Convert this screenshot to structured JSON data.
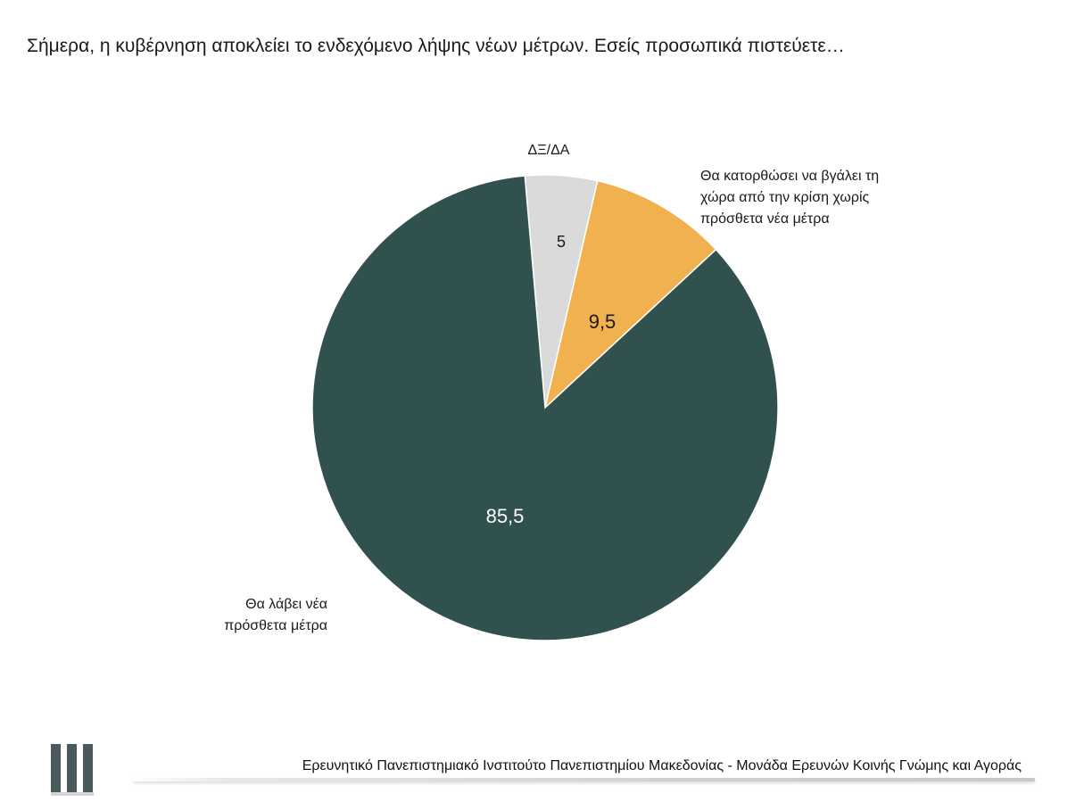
{
  "question": "Σήμερα, η κυβέρνηση αποκλείει το ενδεχόμενο λήψης νέων μέτρων. Εσείς προσωπικά πιστεύετε…",
  "chart_data": {
    "type": "pie",
    "start_angle_deg": -5,
    "direction": "clockwise",
    "slices": [
      {
        "value": 5,
        "value_label": "5",
        "category": [
          "ΔΞ/ΔΑ"
        ],
        "color": "#dadada",
        "value_color": "#1a1a1a"
      },
      {
        "value": 9.5,
        "value_label": "9,5",
        "category": [
          "Θα κατορθώσει να βγάλει τη",
          "χώρα από την κρίση χωρίς",
          "πρόσθετα νέα μέτρα"
        ],
        "color": "#f0b14e",
        "value_color": "#1a1a1a"
      },
      {
        "value": 85.5,
        "value_label": "85,5",
        "category": [
          "Θα λάβει νέα",
          "πρόσθετα μέτρα"
        ],
        "color": "#31514e",
        "value_color": "#ffffff"
      }
    ]
  },
  "footer": {
    "text": "Ερευνητικό Πανεπιστημιακό Ινστιτούτο Πανεπιστημίου Μακεδονίας - Μονάδα Ερευνών Κοινής Γνώμης και Αγοράς"
  },
  "colors": {
    "logo": "#4a5a5c"
  }
}
